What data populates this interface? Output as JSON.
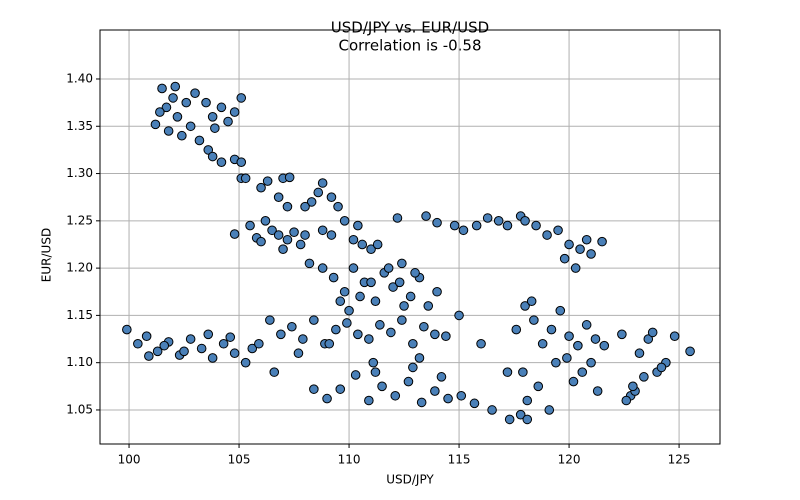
{
  "chart_data": {
    "type": "scatter",
    "title": "USD/JPY vs. EUR/USD",
    "subtitle": "Correlation is -0.58",
    "x_label": "USD/JPY",
    "y_label": "EUR/USD",
    "color": "#4a80b8",
    "edge_color": "#000000",
    "grid": true,
    "xlim": [
      98.68,
      126.86
    ],
    "ylim": [
      1.014,
      1.4518
    ],
    "xticks": [
      100,
      105,
      110,
      115,
      120,
      125
    ],
    "yticks": [
      1.05,
      {
        "value": 1.1,
        "label": "1.10"
      },
      1.15,
      {
        "value": 1.2,
        "label": "1.20"
      },
      1.25,
      {
        "value": 1.3,
        "label": "1.30"
      },
      1.35,
      {
        "value": 1.4,
        "label": "1.40"
      }
    ],
    "x": [
      101.2,
      101.5,
      101.7,
      101.8,
      102.0,
      102.2,
      102.4,
      102.6,
      102.8,
      103.0,
      103.2,
      103.5,
      103.8,
      104.2,
      104.5,
      104.8,
      105.1,
      101.4,
      102.1,
      103.9,
      103.6,
      103.8,
      104.2,
      104.8,
      105.1,
      105.1,
      105.3,
      106.0,
      106.3,
      106.8,
      107.0,
      107.3,
      107.2,
      104.8,
      105.5,
      105.8,
      106.2,
      106.5,
      106.8,
      107.2,
      107.5,
      107.8,
      108.0,
      106.0,
      107.0,
      108.3,
      108.6,
      108.8,
      109.2,
      109.5,
      108.0,
      109.8,
      110.4,
      108.8,
      109.2,
      110.2,
      110.6,
      111.0,
      111.3,
      108.2,
      108.8,
      109.3,
      109.8,
      110.2,
      110.7,
      111.2,
      111.6,
      112.0,
      112.4,
      112.8,
      113.2,
      113.6,
      114.0,
      110.0,
      111.0,
      112.5,
      113.0,
      109.6,
      110.5,
      111.8,
      112.3,
      112.2,
      113.5,
      114.0,
      114.8,
      115.2,
      115.8,
      116.3,
      116.8,
      117.2,
      117.8,
      118.0,
      118.5,
      119.0,
      119.5,
      120.0,
      120.5,
      121.0,
      120.8,
      121.5,
      120.3,
      119.8,
      99.9,
      100.4,
      100.8,
      101.3,
      101.8,
      102.3,
      102.8,
      103.3,
      103.8,
      104.3,
      104.8,
      105.3,
      100.9,
      101.6,
      102.5,
      103.6,
      104.6,
      105.6,
      105.9,
      106.4,
      106.9,
      107.4,
      107.9,
      108.4,
      108.9,
      109.4,
      109.9,
      110.4,
      110.9,
      111.4,
      111.9,
      112.4,
      112.9,
      113.4,
      113.9,
      114.4,
      115.0,
      116.0,
      106.6,
      107.7,
      109.1,
      111.1,
      113.2,
      108.4,
      109.0,
      109.6,
      110.3,
      110.9,
      111.5,
      112.1,
      112.7,
      113.3,
      113.9,
      114.5,
      115.1,
      115.7,
      116.5,
      117.3,
      117.8,
      118.1,
      111.2,
      112.9,
      114.2,
      117.2,
      117.6,
      118.0,
      118.4,
      118.8,
      119.2,
      119.6,
      120.0,
      120.4,
      120.8,
      121.2,
      117.9,
      118.6,
      119.4,
      120.2,
      121.0,
      121.6,
      118.3,
      119.9,
      121.3,
      118.1,
      119.1,
      120.6,
      122.4,
      122.8,
      123.2,
      123.6,
      124.0,
      124.4,
      124.8,
      125.5,
      122.6,
      123.4,
      124.2,
      123.0,
      123.8,
      122.9
    ],
    "values": [
      1.352,
      1.39,
      1.37,
      1.345,
      1.38,
      1.36,
      1.34,
      1.375,
      1.35,
      1.385,
      1.335,
      1.375,
      1.36,
      1.37,
      1.355,
      1.365,
      1.38,
      1.365,
      1.392,
      1.348,
      1.325,
      1.318,
      1.312,
      1.315,
      1.312,
      1.295,
      1.295,
      1.285,
      1.292,
      1.275,
      1.295,
      1.296,
      1.265,
      1.236,
      1.245,
      1.232,
      1.25,
      1.24,
      1.235,
      1.23,
      1.238,
      1.225,
      1.235,
      1.228,
      1.22,
      1.27,
      1.28,
      1.29,
      1.275,
      1.265,
      1.265,
      1.25,
      1.245,
      1.24,
      1.235,
      1.23,
      1.225,
      1.22,
      1.225,
      1.205,
      1.2,
      1.19,
      1.175,
      1.2,
      1.185,
      1.165,
      1.195,
      1.18,
      1.205,
      1.17,
      1.19,
      1.16,
      1.175,
      1.155,
      1.185,
      1.16,
      1.195,
      1.165,
      1.17,
      1.2,
      1.185,
      1.253,
      1.255,
      1.248,
      1.245,
      1.24,
      1.245,
      1.253,
      1.25,
      1.245,
      1.255,
      1.25,
      1.245,
      1.235,
      1.24,
      1.225,
      1.22,
      1.215,
      1.23,
      1.228,
      1.2,
      1.21,
      1.135,
      1.12,
      1.128,
      1.112,
      1.122,
      1.108,
      1.125,
      1.115,
      1.105,
      1.12,
      1.11,
      1.1,
      1.107,
      1.118,
      1.112,
      1.13,
      1.127,
      1.115,
      1.12,
      1.145,
      1.13,
      1.138,
      1.125,
      1.145,
      1.12,
      1.135,
      1.142,
      1.13,
      1.125,
      1.14,
      1.132,
      1.145,
      1.12,
      1.138,
      1.13,
      1.128,
      1.15,
      1.12,
      1.09,
      1.11,
      1.12,
      1.1,
      1.105,
      1.072,
      1.062,
      1.072,
      1.087,
      1.06,
      1.075,
      1.065,
      1.08,
      1.058,
      1.07,
      1.062,
      1.065,
      1.057,
      1.05,
      1.04,
      1.045,
      1.04,
      1.09,
      1.095,
      1.085,
      1.09,
      1.135,
      1.16,
      1.145,
      1.12,
      1.135,
      1.155,
      1.128,
      1.118,
      1.14,
      1.125,
      1.09,
      1.075,
      1.1,
      1.08,
      1.1,
      1.118,
      1.165,
      1.105,
      1.07,
      1.06,
      1.05,
      1.09,
      1.13,
      1.065,
      1.11,
      1.125,
      1.09,
      1.1,
      1.128,
      1.112,
      1.06,
      1.085,
      1.095,
      1.07,
      1.132,
      1.075
    ]
  },
  "x_label_dummy_guard": null
}
